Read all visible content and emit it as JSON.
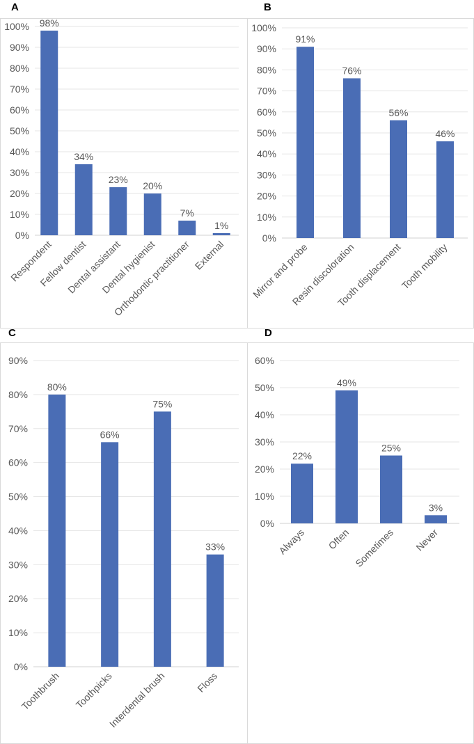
{
  "chart_data": [
    {
      "panel": "A",
      "type": "bar",
      "categories": [
        "Respondent",
        "Fellow dentist",
        "Dental assistant",
        "Dental hygienist",
        "Orthodontic practitioner",
        "External"
      ],
      "values": [
        98,
        34,
        23,
        20,
        7,
        1
      ],
      "data_labels": [
        "98%",
        "34%",
        "23%",
        "20%",
        "7%",
        "1%"
      ],
      "ylim": [
        0,
        100
      ],
      "yticks": [
        "0%",
        "10%",
        "20%",
        "30%",
        "40%",
        "50%",
        "60%",
        "70%",
        "80%",
        "90%",
        "100%"
      ],
      "grid": true,
      "color": "#4a6db5"
    },
    {
      "panel": "B",
      "type": "bar",
      "categories": [
        "Mirror and probe",
        "Resin discoloration",
        "Tooth displacement",
        "Tooth mobility"
      ],
      "values": [
        91,
        76,
        56,
        46
      ],
      "data_labels": [
        "91%",
        "76%",
        "56%",
        "46%"
      ],
      "ylim": [
        0,
        100
      ],
      "yticks": [
        "0%",
        "10%",
        "20%",
        "30%",
        "40%",
        "50%",
        "60%",
        "70%",
        "80%",
        "90%",
        "100%"
      ],
      "grid": true,
      "color": "#4a6db5"
    },
    {
      "panel": "C",
      "type": "bar",
      "categories": [
        "Toothbrush",
        "Toothpicks",
        "Interdental brush",
        "Floss"
      ],
      "values": [
        80,
        66,
        75,
        33
      ],
      "data_labels": [
        "80%",
        "66%",
        "75%",
        "33%"
      ],
      "ylim": [
        0,
        90
      ],
      "yticks": [
        "0%",
        "10%",
        "20%",
        "30%",
        "40%",
        "50%",
        "60%",
        "70%",
        "80%",
        "90%"
      ],
      "grid": true,
      "color": "#4a6db5"
    },
    {
      "panel": "D",
      "type": "bar",
      "categories": [
        "Always",
        "Often",
        "Sometimes",
        "Never"
      ],
      "values": [
        22,
        49,
        25,
        3
      ],
      "data_labels": [
        "22%",
        "49%",
        "25%",
        "3%"
      ],
      "ylim": [
        0,
        60
      ],
      "yticks": [
        "0%",
        "10%",
        "20%",
        "30%",
        "40%",
        "50%",
        "60%"
      ],
      "grid": true,
      "color": "#4a6db5"
    }
  ]
}
